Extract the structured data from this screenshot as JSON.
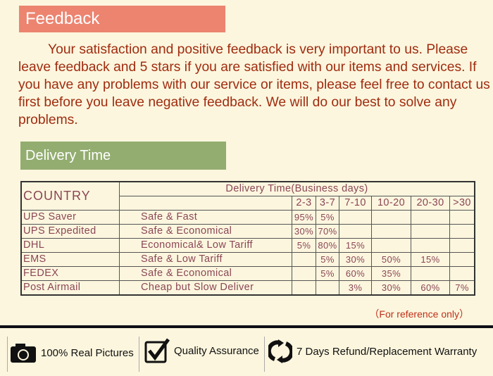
{
  "feedback": {
    "title": "Feedback",
    "text": "Your satisfaction and positive feedback is very important to us. Please leave feedback and 5 stars if you are satisfied with our items and services. If you have any problems with our service or items, please feel free to contact us first before you leave negative feedback. We will do our best to solve any problems."
  },
  "delivery": {
    "title": "Delivery Time"
  },
  "table": {
    "country_header": "COUNTRY",
    "time_header": "Delivery Time(Business days)",
    "ranges": [
      "2-3",
      "3-7",
      "7-10",
      "10-20",
      "20-30",
      ">30"
    ],
    "rows": [
      {
        "country": "UPS Saver",
        "desc": "Safe & Fast",
        "values": [
          "95%",
          "5%",
          "",
          "",
          "",
          ""
        ]
      },
      {
        "country": "UPS Expedited",
        "desc": "Safe & Economical",
        "values": [
          "30%",
          "70%",
          "",
          "",
          "",
          ""
        ]
      },
      {
        "country": "DHL",
        "desc": "Economical& Low Tariff",
        "values": [
          "5%",
          "80%",
          "15%",
          "",
          "",
          ""
        ]
      },
      {
        "country": "EMS",
        "desc": "Safe & Low Tariff",
        "values": [
          "",
          "5%",
          "30%",
          "50%",
          "15%",
          ""
        ]
      },
      {
        "country": "FEDEX",
        "desc": "Safe & Economical",
        "values": [
          "",
          "5%",
          "60%",
          "35%",
          "",
          ""
        ]
      },
      {
        "country": "Post Airmail",
        "desc": "Cheap but Slow Deliver",
        "values": [
          "",
          "",
          "3%",
          "30%",
          "60%",
          "7%"
        ]
      }
    ],
    "note": "（For reference only）"
  },
  "badges": [
    {
      "icon": "camera-icon",
      "label": "100% Real Pictures"
    },
    {
      "icon": "checkbox-icon",
      "label": "Quality Assurance"
    },
    {
      "icon": "refresh-icon",
      "label": "7 Days Refund/Replacement Warranty"
    }
  ]
}
